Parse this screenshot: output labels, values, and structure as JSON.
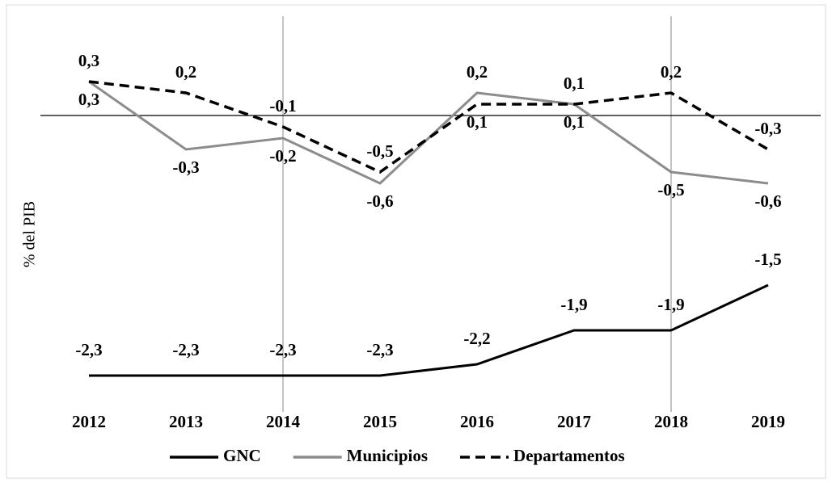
{
  "chart_data": {
    "type": "line",
    "y_label": "% del PIB",
    "categories": [
      "2012",
      "2013",
      "2014",
      "2015",
      "2016",
      "2017",
      "2018",
      "2019"
    ],
    "ylim": [
      -2.6,
      0.9
    ],
    "series": [
      {
        "name": "GNC",
        "color": "#000000",
        "dash": "solid",
        "values": [
          -2.3,
          -2.3,
          -2.3,
          -2.3,
          -2.2,
          -1.9,
          -1.9,
          -1.5
        ],
        "value_labels": [
          "-2,3",
          "-2,3",
          "-2,3",
          "-2,3",
          "-2,2",
          "-1,9",
          "-1,9",
          "-1,5"
        ]
      },
      {
        "name": "Municipios",
        "color": "#8c8c8c",
        "dash": "solid",
        "values": [
          0.3,
          -0.3,
          -0.2,
          -0.6,
          0.2,
          0.1,
          -0.5,
          -0.6
        ],
        "value_labels": [
          "0,3",
          "-0,3",
          "-0,2",
          "-0,6",
          "0,2",
          "0,1",
          "-0,5",
          "-0,6"
        ]
      },
      {
        "name": "Departamentos",
        "color": "#000000",
        "dash": "dashed",
        "values": [
          0.3,
          0.2,
          -0.1,
          -0.5,
          0.1,
          0.1,
          0.2,
          -0.3
        ],
        "value_labels": [
          "0,3",
          "0,2",
          "-0,1",
          "-0,5",
          "0,1",
          "0,1",
          "0,2",
          "-0,3"
        ]
      }
    ]
  }
}
